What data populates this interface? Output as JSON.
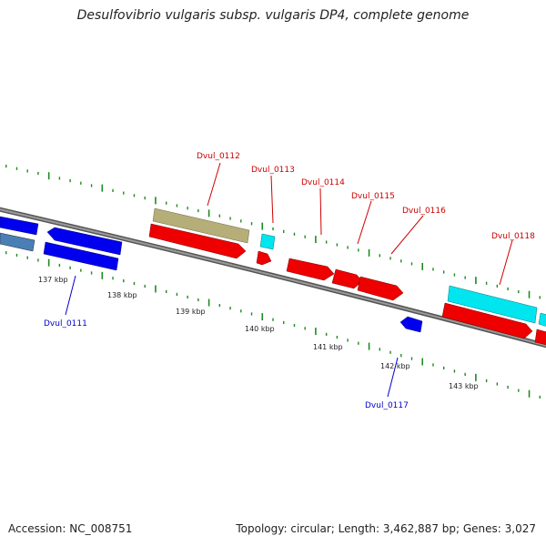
{
  "title": "Desulfovibrio vulgaris subsp. vulgaris DP4, complete genome",
  "accession": "Accession: NC_008751",
  "topology": "Topology: circular; Length: 3,462,887 bp; Genes: 3,027",
  "colors": {
    "forward_cds": "#ee0000",
    "reverse_cds": "#0000ee",
    "rna": "#00e5ee",
    "tan_feature": "#b5ae78",
    "steelblue_feature": "#4a7fb5",
    "backbone": "#7a7a7a",
    "tick": "#1c8c1c"
  },
  "scale_ticks": [
    {
      "kbp": 137,
      "label": "137 kbp"
    },
    {
      "kbp": 138,
      "label": "138 kbp"
    },
    {
      "kbp": 139,
      "label": "139 kbp"
    },
    {
      "kbp": 140,
      "label": "140 kbp"
    },
    {
      "kbp": 141,
      "label": "141 kbp"
    },
    {
      "kbp": 142,
      "label": "142 kbp"
    },
    {
      "kbp": 143,
      "label": "143 kbp"
    }
  ],
  "gene_labels": [
    {
      "text": "Dvul_0111",
      "strand": "reverse"
    },
    {
      "text": "Dvul_0112",
      "strand": "forward"
    },
    {
      "text": "Dvul_0113",
      "strand": "forward"
    },
    {
      "text": "Dvul_0114",
      "strand": "forward"
    },
    {
      "text": "Dvul_0115",
      "strand": "forward"
    },
    {
      "text": "Dvul_0116",
      "strand": "forward"
    },
    {
      "text": "Dvul_0117",
      "strand": "reverse"
    },
    {
      "text": "Dvul_0118",
      "strand": "forward"
    }
  ]
}
